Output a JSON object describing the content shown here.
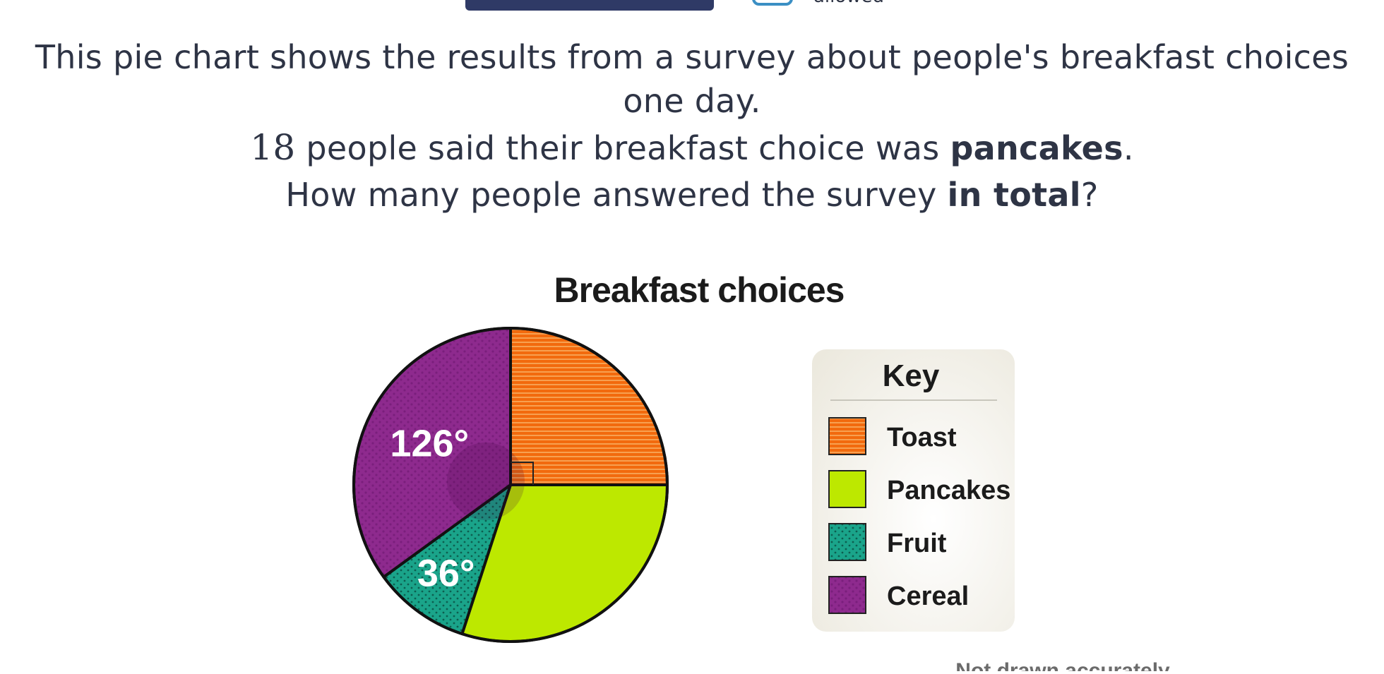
{
  "question": {
    "line1": "This pie chart shows the results from a survey about people's breakfast choices one day.",
    "line2_number": "18",
    "line2_text": " people said their breakfast choice was ",
    "line2_bold": "pancakes",
    "line2_end": ".",
    "line3_text": "How many people answered the survey ",
    "line3_bold": "in total",
    "line3_end": "?"
  },
  "top_partial_label": "allowed",
  "colors": {
    "toast": "#f26a0d",
    "pancakes": "#bde800",
    "fruit": "#1aa48a",
    "cereal": "#8e2a8e",
    "text": "#2e3445"
  },
  "chart_data": {
    "type": "pie",
    "title": "Breakfast choices",
    "legend_title": "Key",
    "legend_position": "right",
    "footnote": "Not drawn accurately",
    "slices": [
      {
        "name": "Toast",
        "angle": 90,
        "label": "",
        "color": "#f26a0d",
        "pattern": "lines"
      },
      {
        "name": "Pancakes",
        "angle": 108,
        "label": "",
        "color": "#bde800",
        "pattern": "none"
      },
      {
        "name": "Fruit",
        "angle": 36,
        "label": "36°",
        "color": "#1aa48a",
        "pattern": "dots"
      },
      {
        "name": "Cereal",
        "angle": 126,
        "label": "126°",
        "color": "#8e2a8e",
        "pattern": "dots"
      }
    ],
    "right_angle_marker_slice": "Toast"
  }
}
